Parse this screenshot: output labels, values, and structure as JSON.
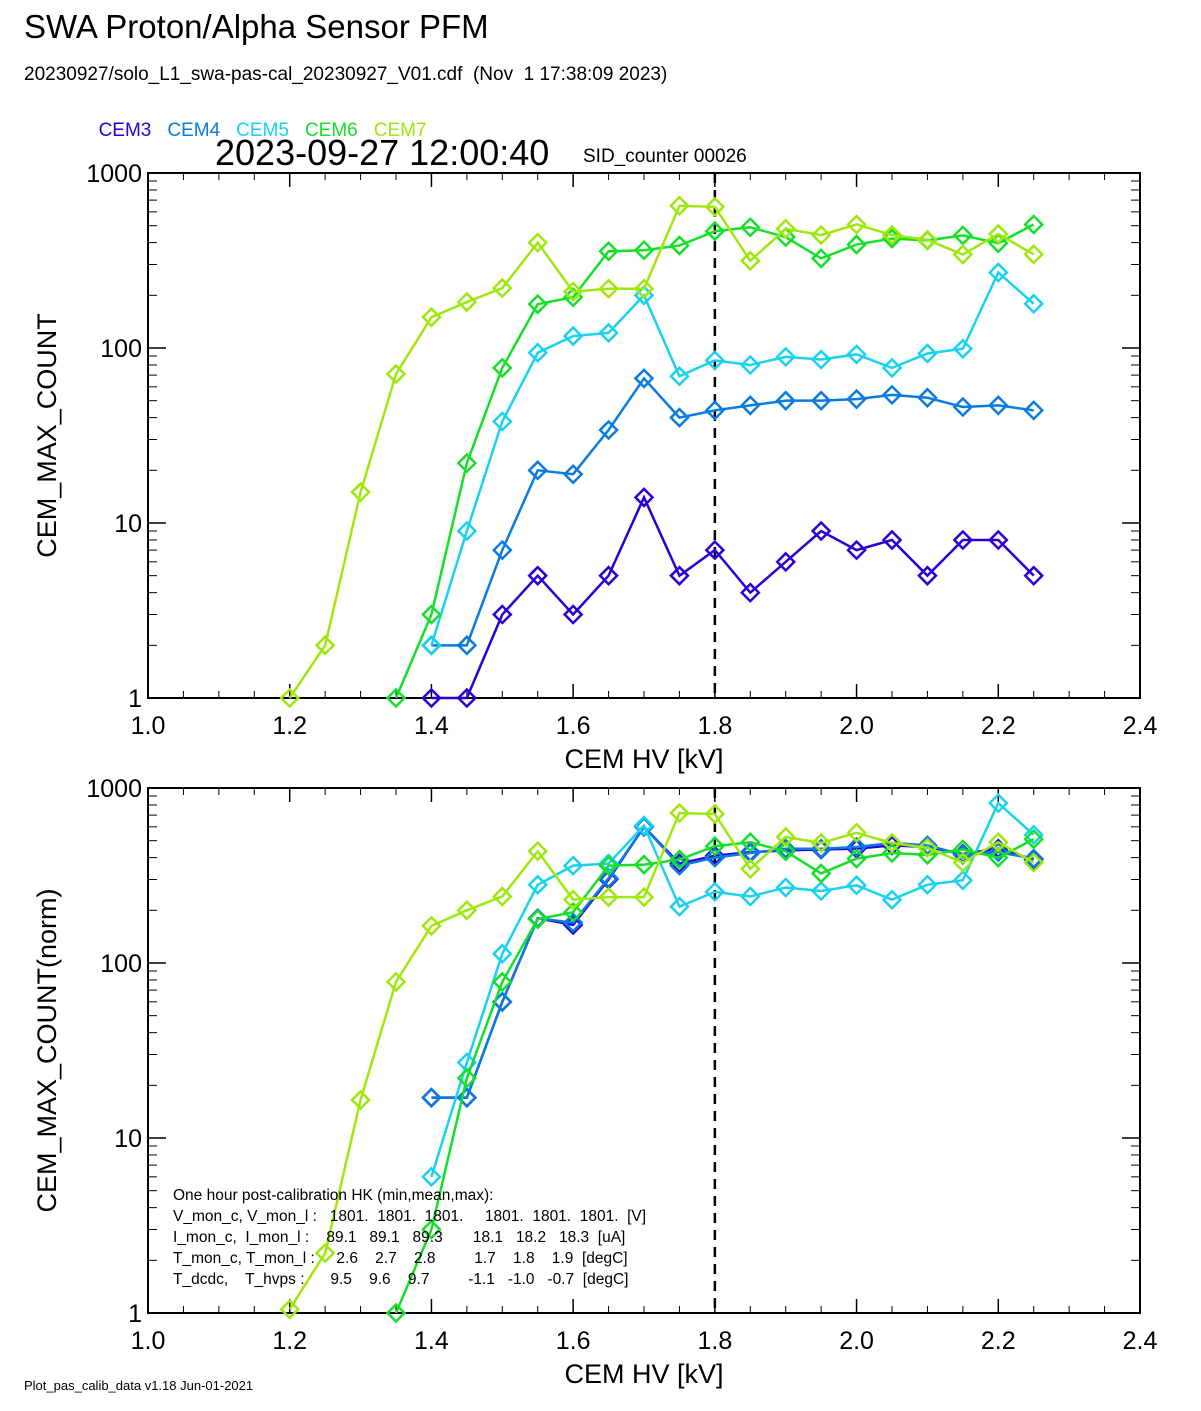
{
  "title": "SWA Proton/Alpha Sensor PFM",
  "file_line": "20230927/solo_L1_swa-pas-cal_20230927_V01.cdf  (Nov  1 17:38:09 2023)",
  "timestamp": "2023-09-27 12:00:40",
  "sid_counter": "SID_counter 00026",
  "footer": "Plot_pas_calib_data v1.18 Jun-01-2021",
  "colors": {
    "CEM3": "#2b00d6",
    "CEM4": "#0a7be0",
    "CEM5": "#19d2f0",
    "CEM6": "#14e02a",
    "CEM7": "#9ee80e"
  },
  "legend": [
    "CEM3",
    "CEM4",
    "CEM5",
    "CEM6",
    "CEM7"
  ],
  "hk_box": {
    "lines": [
      "One hour post-calibration HK (min,mean,max):",
      "V_mon_c, V_mon_l :   1801.  1801.  1801.     1801.  1801.  1801.  [V]",
      "I_mon_c,  I_mon_l :    89.1   89.1   89.3       18.1   18.2   18.3  [uA]",
      "T_mon_c, T_mon_l :     2.6    2.7    2.8         1.7    1.8    1.9  [degC]",
      "T_dcdc,    T_hvps :      9.5    9.6    9.7         -1.1   -1.0   -0.7  [degC]"
    ]
  },
  "chart_data": [
    {
      "type": "line",
      "xlabel": "CEM HV [kV]",
      "ylabel": "CEM_MAX_COUNT",
      "xlim": [
        1.0,
        2.4
      ],
      "ylim": [
        1,
        1000
      ],
      "yscale": "log",
      "xticks": [
        "1.0",
        "1.2",
        "1.4",
        "1.6",
        "1.8",
        "2.0",
        "2.2",
        "2.4"
      ],
      "yticks": [
        "1",
        "10",
        "100",
        "1000"
      ],
      "marker": "diamond",
      "vline": 1.8,
      "series": [
        {
          "name": "CEM3",
          "x": [
            1.4,
            1.45,
            1.5,
            1.55,
            1.6,
            1.65,
            1.7,
            1.75,
            1.8,
            1.85,
            1.9,
            1.95,
            2.0,
            2.05,
            2.1,
            2.15,
            2.2,
            2.25
          ],
          "values": [
            1,
            1,
            3,
            5,
            3,
            5,
            14,
            5,
            7,
            4,
            6,
            9,
            7,
            8,
            5,
            8,
            8,
            5
          ]
        },
        {
          "name": "CEM4",
          "x": [
            1.4,
            1.45,
            1.5,
            1.55,
            1.6,
            1.65,
            1.7,
            1.75,
            1.8,
            1.85,
            1.9,
            1.95,
            2.0,
            2.05,
            2.1,
            2.15,
            2.2,
            2.25
          ],
          "values": [
            2,
            2,
            7,
            20,
            19,
            34,
            67,
            40,
            44,
            47,
            50,
            50,
            51,
            54,
            52,
            46,
            47,
            44
          ]
        },
        {
          "name": "CEM5",
          "x": [
            1.4,
            1.45,
            1.5,
            1.55,
            1.6,
            1.65,
            1.7,
            1.75,
            1.8,
            1.85,
            1.9,
            1.95,
            2.0,
            2.05,
            2.1,
            2.15,
            2.2,
            2.25
          ],
          "values": [
            2,
            9,
            38,
            94,
            117,
            122,
            200,
            69,
            85,
            80,
            89,
            86,
            92,
            77,
            93,
            99,
            270,
            179
          ]
        },
        {
          "name": "CEM6",
          "x": [
            1.35,
            1.4,
            1.45,
            1.5,
            1.55,
            1.6,
            1.65,
            1.7,
            1.75,
            1.8,
            1.85,
            1.9,
            1.95,
            2.0,
            2.05,
            2.1,
            2.15,
            2.2,
            2.25
          ],
          "values": [
            1,
            3,
            22,
            77,
            178,
            195,
            357,
            362,
            385,
            465,
            490,
            430,
            325,
            390,
            422,
            412,
            440,
            397,
            508
          ]
        },
        {
          "name": "CEM7",
          "x": [
            1.2,
            1.25,
            1.3,
            1.35,
            1.4,
            1.45,
            1.5,
            1.55,
            1.6,
            1.65,
            1.7,
            1.75,
            1.8,
            1.85,
            1.9,
            1.95,
            2.0,
            2.05,
            2.1,
            2.15,
            2.2,
            2.25
          ],
          "values": [
            1,
            2,
            15,
            71,
            150,
            183,
            220,
            400,
            210,
            218,
            218,
            650,
            640,
            315,
            480,
            442,
            508,
            442,
            415,
            342,
            448,
            343
          ]
        }
      ]
    },
    {
      "type": "line",
      "xlabel": "CEM HV [kV]",
      "ylabel": "CEM_MAX_COUNT(norm)",
      "xlim": [
        1.0,
        2.4
      ],
      "ylim": [
        1,
        1000
      ],
      "yscale": "log",
      "xticks": [
        "1.0",
        "1.2",
        "1.4",
        "1.6",
        "1.8",
        "2.0",
        "2.2",
        "2.4"
      ],
      "yticks": [
        "1",
        "10",
        "100",
        "1000"
      ],
      "marker": "diamond",
      "vline": 1.8,
      "series": [
        {
          "name": "CEM3",
          "x": [
            1.4,
            1.45,
            1.5,
            1.55,
            1.6,
            1.65,
            1.7,
            1.75,
            1.8,
            1.85,
            1.9,
            1.95,
            2.0,
            2.05,
            2.1,
            2.15,
            2.2,
            2.25
          ],
          "values": [
            17,
            17,
            60,
            180,
            165,
            300,
            600,
            370,
            410,
            430,
            440,
            445,
            450,
            470,
            460,
            420,
            450,
            390
          ]
        },
        {
          "name": "CEM4",
          "x": [
            1.4,
            1.45,
            1.5,
            1.55,
            1.6,
            1.65,
            1.7,
            1.75,
            1.8,
            1.85,
            1.9,
            1.95,
            2.0,
            2.05,
            2.1,
            2.15,
            2.2,
            2.25
          ],
          "values": [
            17,
            17,
            60,
            180,
            170,
            305,
            600,
            360,
            400,
            425,
            450,
            450,
            460,
            485,
            470,
            415,
            430,
            395
          ]
        },
        {
          "name": "CEM5",
          "x": [
            1.4,
            1.45,
            1.5,
            1.55,
            1.6,
            1.65,
            1.7,
            1.75,
            1.8,
            1.85,
            1.9,
            1.95,
            2.0,
            2.05,
            2.1,
            2.15,
            2.2,
            2.25
          ],
          "values": [
            6,
            27,
            113,
            280,
            360,
            370,
            610,
            210,
            255,
            240,
            270,
            258,
            278,
            230,
            280,
            297,
            820,
            540
          ]
        },
        {
          "name": "CEM6",
          "x": [
            1.35,
            1.4,
            1.45,
            1.5,
            1.55,
            1.6,
            1.65,
            1.7,
            1.75,
            1.8,
            1.85,
            1.9,
            1.95,
            2.0,
            2.05,
            2.1,
            2.15,
            2.2,
            2.25
          ],
          "values": [
            1,
            3,
            22,
            78,
            178,
            195,
            360,
            365,
            390,
            465,
            490,
            435,
            325,
            395,
            425,
            415,
            445,
            400,
            510
          ]
        },
        {
          "name": "CEM7",
          "x": [
            1.2,
            1.25,
            1.3,
            1.35,
            1.4,
            1.45,
            1.5,
            1.55,
            1.6,
            1.65,
            1.7,
            1.75,
            1.8,
            1.85,
            1.9,
            1.95,
            2.0,
            2.05,
            2.1,
            2.15,
            2.2,
            2.25
          ],
          "values": [
            1.05,
            2.2,
            16.5,
            78,
            163,
            200,
            240,
            435,
            230,
            238,
            238,
            720,
            710,
            345,
            525,
            485,
            555,
            485,
            455,
            375,
            490,
            375
          ]
        }
      ]
    }
  ]
}
